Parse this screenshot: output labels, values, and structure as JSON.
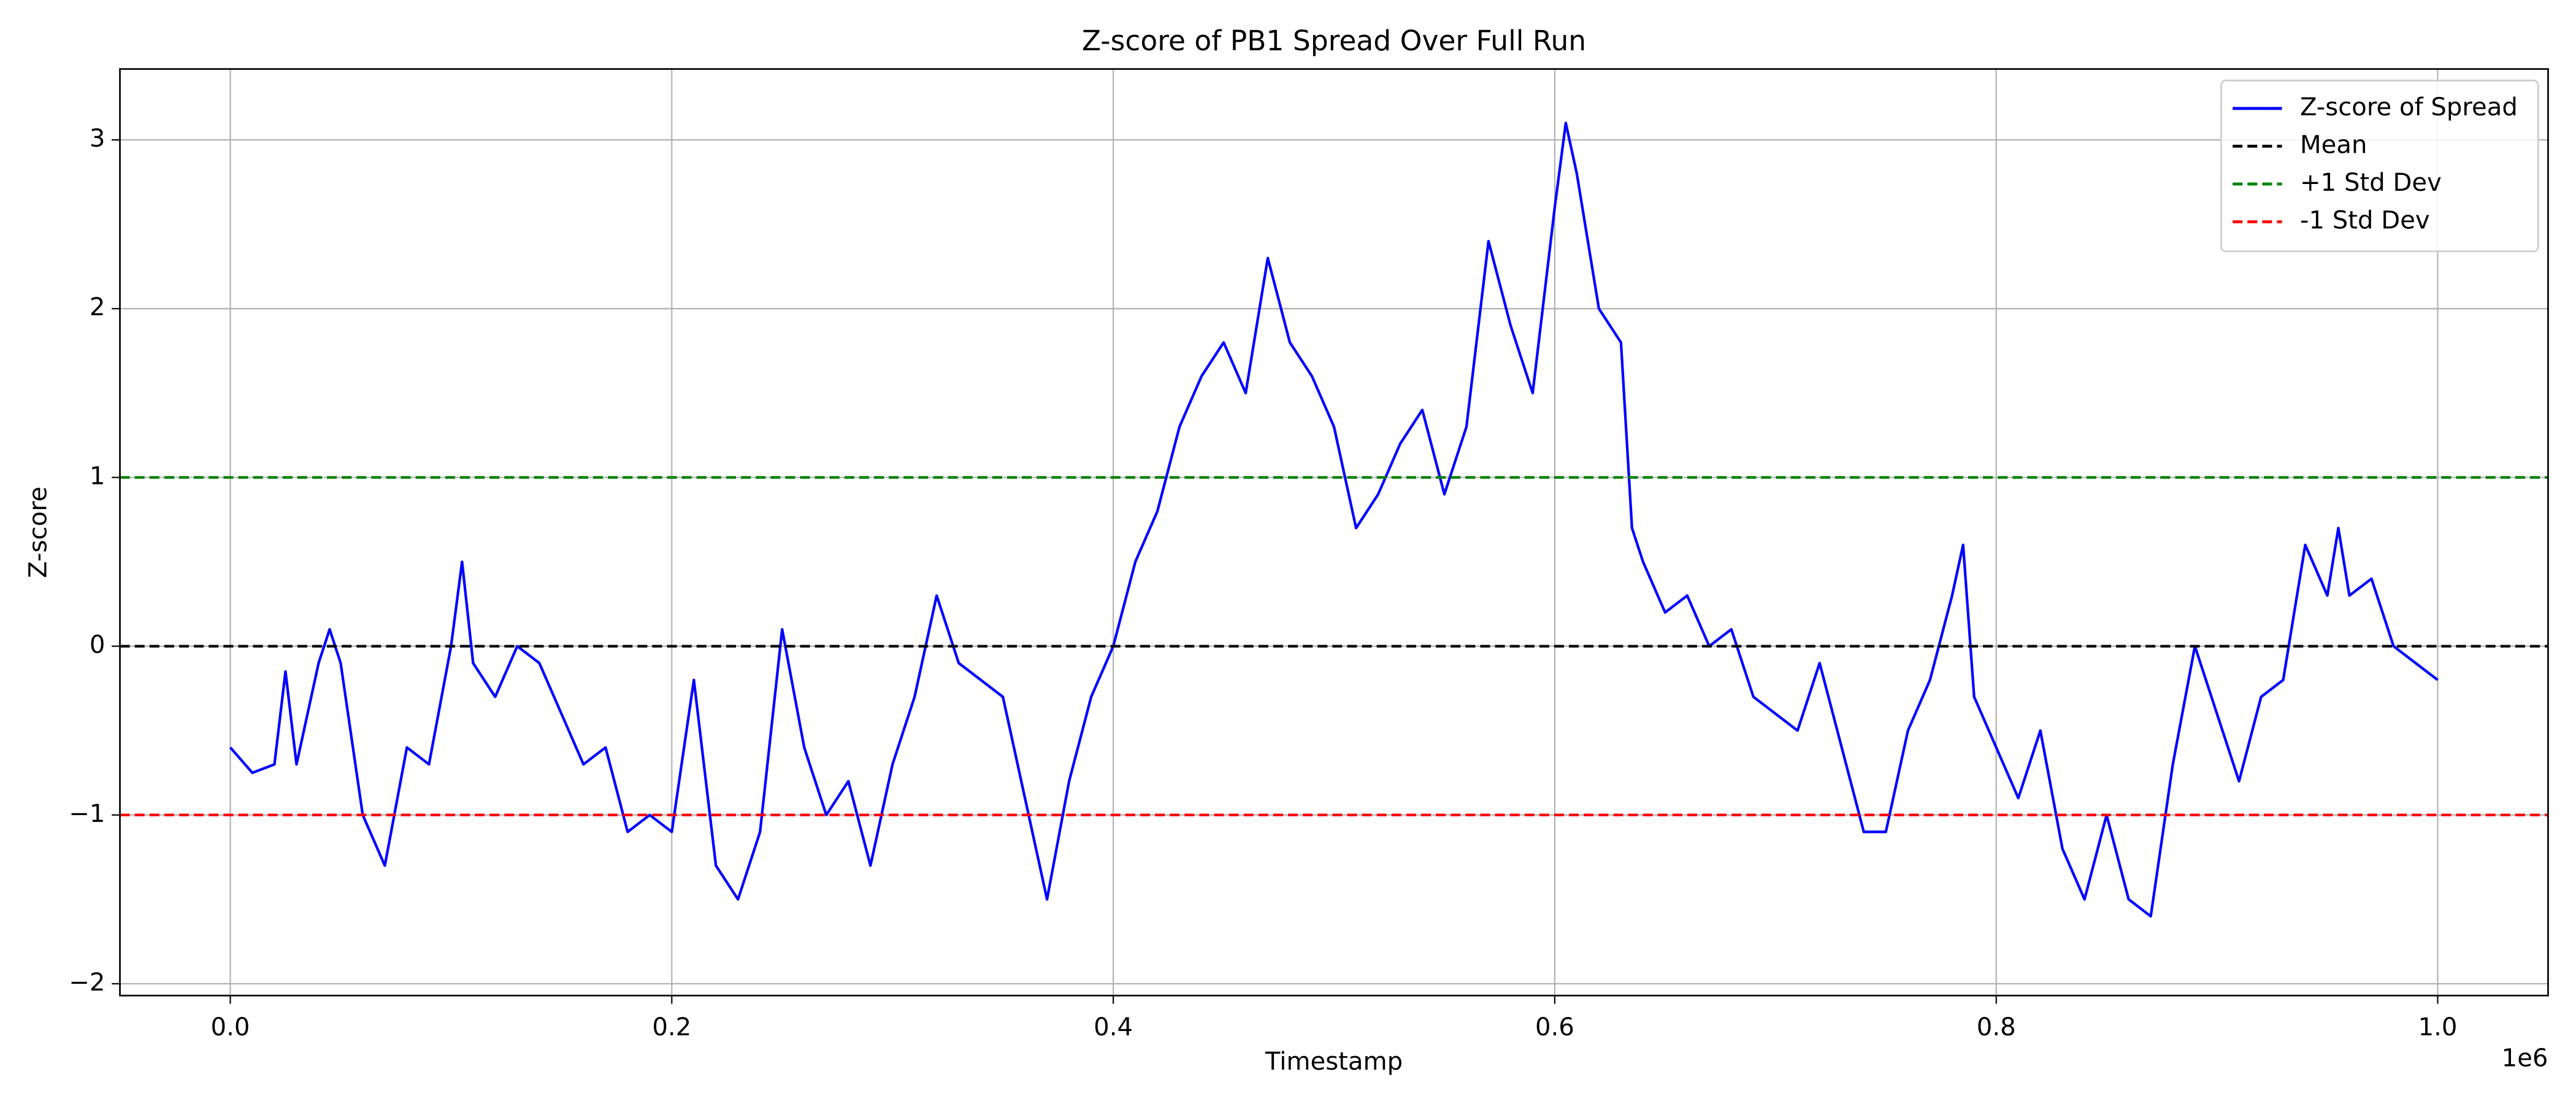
{
  "chart_data": {
    "type": "line",
    "title": "Z-score of PB1 Spread Over Full Run",
    "x_label": "Timestamp",
    "y_label": "Z-score",
    "x_offset_label": "1e6",
    "xlim": [
      -50000,
      1050000
    ],
    "ylim": [
      -2.07,
      3.42
    ],
    "xticks": [
      {
        "value": 0,
        "label": "0.0"
      },
      {
        "value": 200000,
        "label": "0.2"
      },
      {
        "value": 400000,
        "label": "0.4"
      },
      {
        "value": 600000,
        "label": "0.6"
      },
      {
        "value": 800000,
        "label": "0.8"
      },
      {
        "value": 1000000,
        "label": "1.0"
      }
    ],
    "yticks": [
      {
        "value": -2,
        "label": "−2"
      },
      {
        "value": -1,
        "label": "−1"
      },
      0,
      1,
      2,
      3
    ],
    "grid": true,
    "legend": "upper right",
    "x": [
      0,
      10000,
      20000,
      25000,
      30000,
      40000,
      45000,
      50000,
      60000,
      70000,
      80000,
      90000,
      100000,
      105000,
      110000,
      120000,
      130000,
      140000,
      150000,
      160000,
      170000,
      180000,
      190000,
      200000,
      210000,
      220000,
      230000,
      240000,
      250000,
      260000,
      270000,
      280000,
      290000,
      300000,
      310000,
      320000,
      330000,
      340000,
      350000,
      360000,
      370000,
      380000,
      390000,
      400000,
      410000,
      420000,
      430000,
      440000,
      450000,
      460000,
      470000,
      480000,
      490000,
      500000,
      510000,
      520000,
      530000,
      540000,
      550000,
      560000,
      570000,
      580000,
      590000,
      600000,
      605000,
      610000,
      620000,
      630000,
      635000,
      640000,
      650000,
      660000,
      670000,
      680000,
      690000,
      700000,
      710000,
      720000,
      730000,
      740000,
      750000,
      760000,
      770000,
      780000,
      785000,
      790000,
      800000,
      810000,
      820000,
      830000,
      840000,
      850000,
      860000,
      870000,
      880000,
      890000,
      900000,
      910000,
      920000,
      930000,
      940000,
      950000,
      955000,
      960000,
      970000,
      980000,
      990000,
      1000000
    ],
    "series": [
      {
        "name": "Z-score of Spread",
        "color": "#0000ff",
        "values": [
          -0.6,
          -0.75,
          -0.7,
          -0.15,
          -0.7,
          -0.1,
          0.1,
          -0.1,
          -1.0,
          -1.3,
          -0.6,
          -0.7,
          0.0,
          0.5,
          -0.1,
          -0.3,
          0.0,
          -0.1,
          -0.4,
          -0.7,
          -0.6,
          -1.1,
          -1.0,
          -1.1,
          -0.2,
          -1.3,
          -1.5,
          -1.1,
          0.1,
          -0.6,
          -1.0,
          -0.8,
          -1.3,
          -0.7,
          -0.3,
          0.3,
          -0.1,
          -0.2,
          -0.3,
          -0.9,
          -1.5,
          -0.8,
          -0.3,
          0.0,
          0.5,
          0.8,
          1.3,
          1.6,
          1.8,
          1.5,
          2.3,
          1.8,
          1.6,
          1.3,
          0.7,
          0.9,
          1.2,
          1.4,
          0.9,
          1.3,
          2.4,
          1.9,
          1.5,
          2.6,
          3.1,
          2.8,
          2.0,
          1.8,
          0.7,
          0.5,
          0.2,
          0.3,
          0.0,
          0.1,
          -0.3,
          -0.4,
          -0.5,
          -0.1,
          -0.6,
          -1.1,
          -1.1,
          -0.5,
          -0.2,
          0.3,
          0.6,
          -0.3,
          -0.6,
          -0.9,
          -0.5,
          -1.2,
          -1.5,
          -1.0,
          -1.5,
          -1.6,
          -0.7,
          0.0,
          -0.4,
          -0.8,
          -0.3,
          -0.2,
          0.6,
          0.3,
          0.7,
          0.3,
          0.4,
          0.0,
          -0.1,
          -0.2
        ]
      }
    ],
    "hlines": [
      {
        "name": "Mean",
        "value": 0,
        "color": "#000000"
      },
      {
        "name": "+1 Std Dev",
        "value": 1,
        "color": "#008000"
      },
      {
        "name": "-1 Std Dev",
        "value": -1,
        "color": "#ff0000"
      }
    ]
  }
}
